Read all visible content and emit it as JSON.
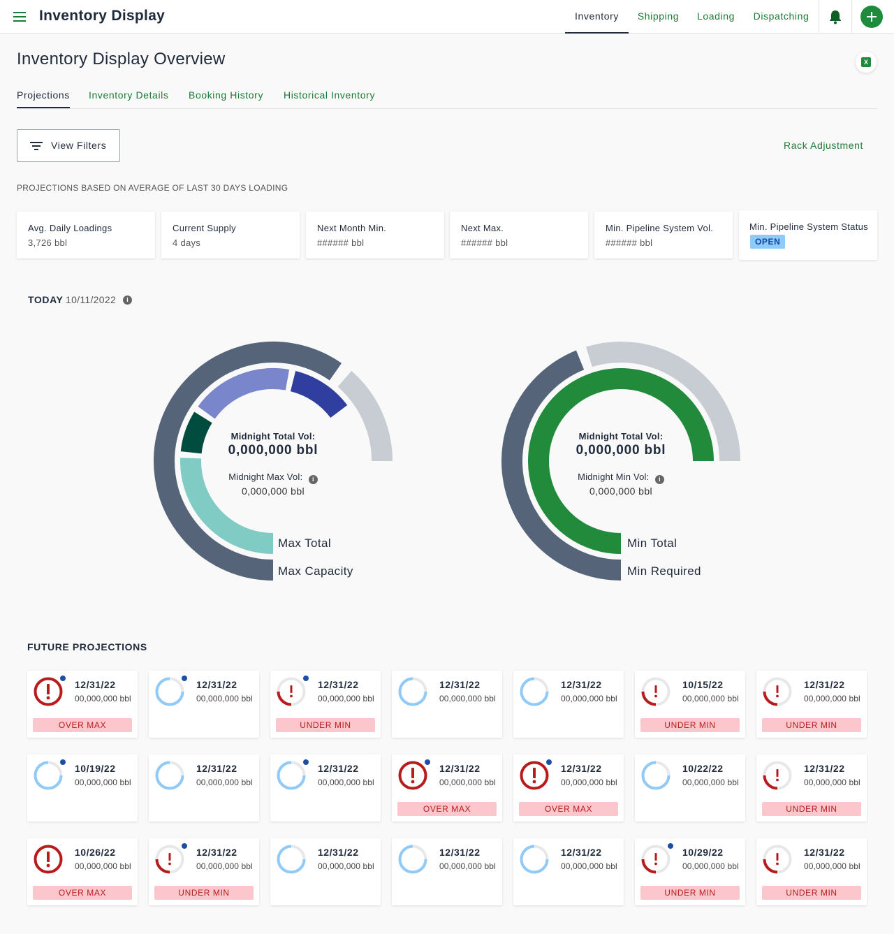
{
  "header": {
    "app_title": "Inventory Display",
    "nav": [
      "Inventory",
      "Shipping",
      "Loading",
      "Dispatching"
    ],
    "active_nav": "Inventory"
  },
  "page": {
    "title": "Inventory Display Overview",
    "tabs": [
      "Projections",
      "Inventory Details",
      "Booking History",
      "Historical Inventory"
    ],
    "active_tab": "Projections",
    "filter_label": "View Filters",
    "rack_adjustment": "Rack Adjustment",
    "caption": "PROJECTIONS BASED ON AVERAGE OF LAST 30 DAYS LOADING"
  },
  "stats": [
    {
      "label": "Avg. Daily Loadings",
      "value": "3,726 bbl"
    },
    {
      "label": "Current Supply",
      "value": "4 days"
    },
    {
      "label": "Next Month Min.",
      "value": "###### bbl"
    },
    {
      "label": "Next Max.",
      "value": "###### bbl"
    },
    {
      "label": "Min. Pipeline System Vol.",
      "value": "###### bbl"
    },
    {
      "label": "Min. Pipeline System Status",
      "badge": "OPEN"
    }
  ],
  "today": {
    "label": "TODAY",
    "date": "10/11/2022",
    "max_gauge": {
      "total_label": "Midnight Total Vol:",
      "total_value": "0,000,000 bbl",
      "sub_label": "Midnight Max Vol:",
      "sub_value": "0,000,000 bbl",
      "inner_label": "Max Total",
      "outer_label": "Max Capacity"
    },
    "min_gauge": {
      "total_label": "Midnight Total Vol:",
      "total_value": "0,000,000 bbl",
      "sub_label": "Midnight Min Vol:",
      "sub_value": "0,000,000 bbl",
      "inner_label": "Min Total",
      "outer_label": "Min Required"
    }
  },
  "colors": {
    "brand_green": "#1e8b3d",
    "slate": "#556478",
    "light_gray": "#c8ccd3",
    "teal": "#80cbc4",
    "dark_green": "#004d40",
    "periwinkle": "#7986cb",
    "indigo": "#303f9f",
    "alert_red": "#b71c1c",
    "light_blue": "#90caf9"
  },
  "future": {
    "label": "FUTURE PROJECTIONS",
    "cards": [
      {
        "date": "12/31/22",
        "value": "00,000,000 bbl",
        "status": "OVER MAX",
        "kind": "over",
        "dot": true
      },
      {
        "date": "12/31/22",
        "value": "00,000,000 bbl",
        "status": "",
        "kind": "ok",
        "dot": true
      },
      {
        "date": "12/31/22",
        "value": "00,000,000 bbl",
        "status": "UNDER MIN",
        "kind": "under",
        "dot": true
      },
      {
        "date": "12/31/22",
        "value": "00,000,000 bbl",
        "status": "",
        "kind": "ok",
        "dot": false
      },
      {
        "date": "12/31/22",
        "value": "00,000,000 bbl",
        "status": "",
        "kind": "ok",
        "dot": false
      },
      {
        "date": "10/15/22",
        "value": "00,000,000 bbl",
        "status": "UNDER MIN",
        "kind": "under",
        "dot": false
      },
      {
        "date": "12/31/22",
        "value": "00,000,000 bbl",
        "status": "UNDER MIN",
        "kind": "under",
        "dot": false
      },
      {
        "date": "10/19/22",
        "value": "00,000,000 bbl",
        "status": "",
        "kind": "ok",
        "dot": true
      },
      {
        "date": "12/31/22",
        "value": "00,000,000 bbl",
        "status": "",
        "kind": "ok",
        "dot": false
      },
      {
        "date": "12/31/22",
        "value": "00,000,000 bbl",
        "status": "",
        "kind": "ok",
        "dot": true
      },
      {
        "date": "12/31/22",
        "value": "00,000,000 bbl",
        "status": "OVER MAX",
        "kind": "over",
        "dot": true
      },
      {
        "date": "12/31/22",
        "value": "00,000,000 bbl",
        "status": "OVER MAX",
        "kind": "over",
        "dot": true
      },
      {
        "date": "10/22/22",
        "value": "00,000,000 bbl",
        "status": "",
        "kind": "ok",
        "dot": false
      },
      {
        "date": "12/31/22",
        "value": "00,000,000 bbl",
        "status": "UNDER MIN",
        "kind": "under",
        "dot": false
      },
      {
        "date": "10/26/22",
        "value": "00,000,000 bbl",
        "status": "OVER MAX",
        "kind": "over",
        "dot": false
      },
      {
        "date": "12/31/22",
        "value": "00,000,000 bbl",
        "status": "UNDER MIN",
        "kind": "under",
        "dot": true
      },
      {
        "date": "12/31/22",
        "value": "00,000,000 bbl",
        "status": "",
        "kind": "ok",
        "dot": false
      },
      {
        "date": "12/31/22",
        "value": "00,000,000 bbl",
        "status": "",
        "kind": "ok",
        "dot": false
      },
      {
        "date": "12/31/22",
        "value": "00,000,000 bbl",
        "status": "",
        "kind": "ok",
        "dot": false
      },
      {
        "date": "10/29/22",
        "value": "00,000,000 bbl",
        "status": "UNDER MIN",
        "kind": "under",
        "dot": true
      },
      {
        "date": "12/31/22",
        "value": "00,000,000 bbl",
        "status": "UNDER MIN",
        "kind": "under",
        "dot": false
      }
    ]
  }
}
